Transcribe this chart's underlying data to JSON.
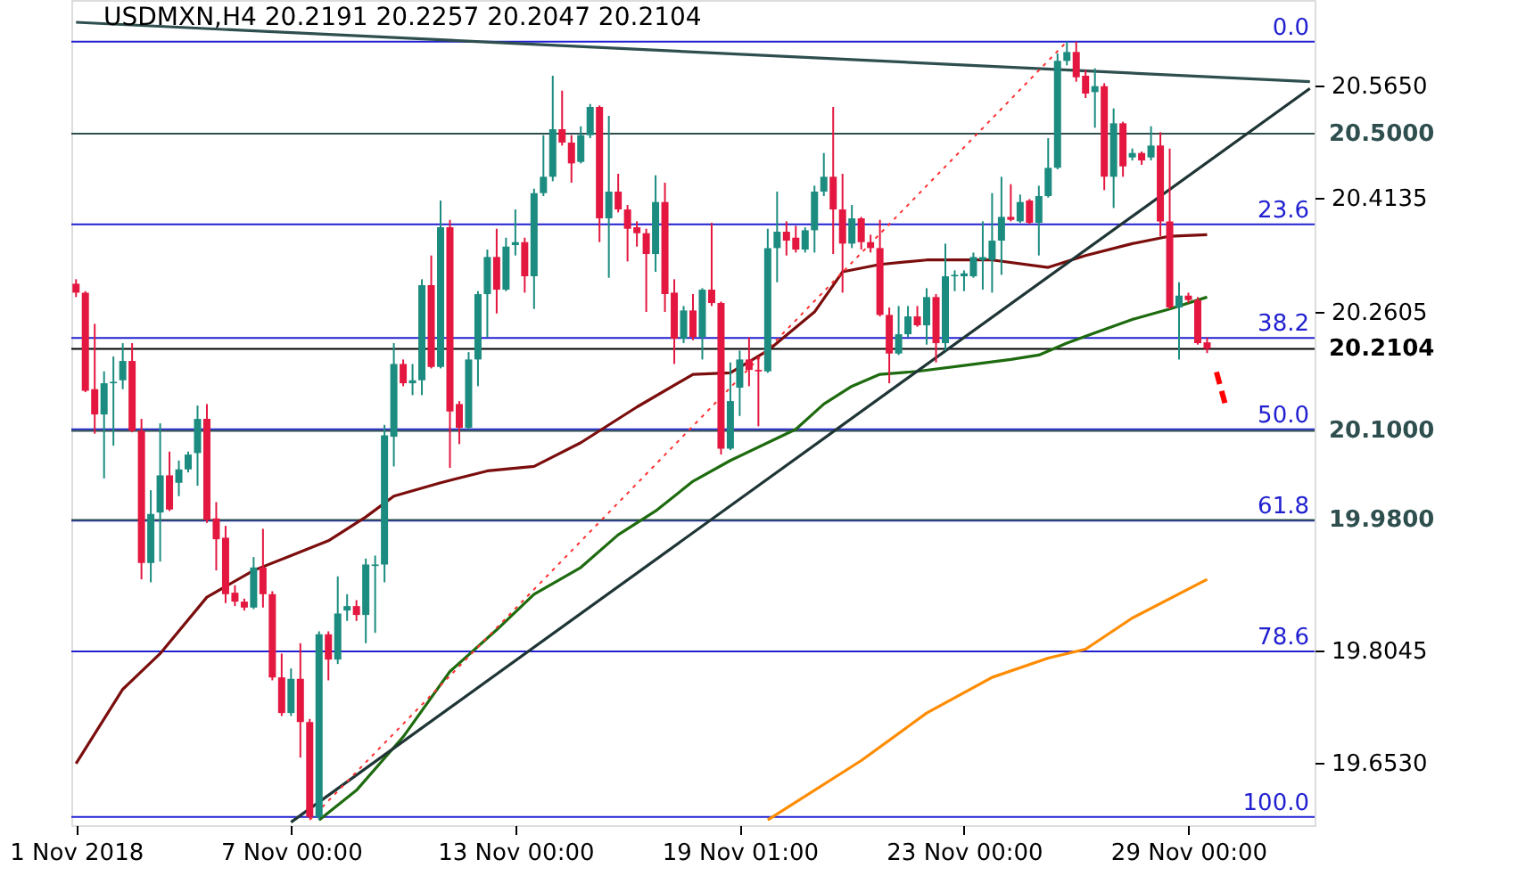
{
  "chart_data": {
    "type": "candlestick",
    "title": "USDMXN,H4  20.2191 20.2257 20.2047 20.2104",
    "categories": [
      "1 Nov 2018",
      null,
      null,
      null,
      null,
      null,
      null,
      null,
      null,
      null,
      null,
      null,
      null,
      null,
      null,
      null,
      null,
      null,
      null,
      null,
      null,
      null,
      null,
      "7 Nov 00:00",
      null,
      null,
      null,
      null,
      null,
      null,
      null,
      null,
      null,
      null,
      null,
      null,
      null,
      null,
      null,
      null,
      null,
      null,
      null,
      null,
      null,
      null,
      null,
      "13 Nov 00:00",
      null,
      null,
      null,
      null,
      null,
      null,
      null,
      null,
      null,
      null,
      null,
      null,
      null,
      null,
      null,
      null,
      null,
      null,
      null,
      null,
      null,
      null,
      null,
      "19 Nov 01:00",
      null,
      null,
      null,
      null,
      null,
      null,
      null,
      null,
      null,
      null,
      null,
      null,
      null,
      null,
      null,
      null,
      null,
      null,
      null,
      null,
      null,
      null,
      null,
      "23 Nov 00:00",
      null,
      null,
      null,
      null,
      null,
      null,
      null,
      null,
      null,
      null,
      null,
      null,
      null,
      null,
      null,
      null,
      null,
      null,
      null,
      null,
      null,
      null,
      null,
      "29 Nov 00:00",
      null,
      null,
      null,
      null,
      null,
      null,
      null,
      null,
      null,
      null,
      null,
      null,
      null
    ],
    "ohlc": [
      [
        20.298,
        20.304,
        20.28,
        20.286
      ],
      [
        20.286,
        20.288,
        20.152,
        20.154
      ],
      [
        20.156,
        20.244,
        20.096,
        20.122
      ],
      [
        20.122,
        20.18,
        20.036,
        20.164
      ],
      [
        20.164,
        20.2,
        20.08,
        20.166
      ],
      [
        20.168,
        20.218,
        20.156,
        20.194
      ],
      [
        20.194,
        20.218,
        20.098,
        20.1
      ],
      [
        20.1,
        20.116,
        19.9,
        19.922
      ],
      [
        19.922,
        20.02,
        19.896,
        19.988
      ],
      [
        19.99,
        20.11,
        19.924,
        20.04
      ],
      [
        20.04,
        20.072,
        19.992,
        19.994
      ],
      [
        20.03,
        20.06,
        20.012,
        20.048
      ],
      [
        20.048,
        20.072,
        20.044,
        20.068
      ],
      [
        20.07,
        20.134,
        20.026,
        20.116
      ],
      [
        20.116,
        20.136,
        19.976,
        19.98
      ],
      [
        19.982,
        20.004,
        19.912,
        19.954
      ],
      [
        19.956,
        19.972,
        19.868,
        19.88
      ],
      [
        19.882,
        19.892,
        19.864,
        19.87
      ],
      [
        19.87,
        19.874,
        19.858,
        19.862
      ],
      [
        19.862,
        19.93,
        19.86,
        19.916
      ],
      [
        19.916,
        19.968,
        19.862,
        19.88
      ],
      [
        19.88,
        19.884,
        19.764,
        19.768
      ],
      [
        19.768,
        19.8,
        19.716,
        19.72
      ],
      [
        19.72,
        19.78,
        19.716,
        19.766
      ],
      [
        19.766,
        19.814,
        19.66,
        19.708
      ],
      [
        19.708,
        19.712,
        19.578,
        19.58
      ],
      [
        19.58,
        19.83,
        19.576,
        19.826
      ],
      [
        19.826,
        19.83,
        19.764,
        19.792
      ],
      [
        19.792,
        19.904,
        19.786,
        19.854
      ],
      [
        19.858,
        19.88,
        19.844,
        19.864
      ],
      [
        19.864,
        19.872,
        19.844,
        19.852
      ],
      [
        19.852,
        19.928,
        19.814,
        19.92
      ],
      [
        19.918,
        19.932,
        19.828,
        19.92
      ],
      [
        19.92,
        20.108,
        19.896,
        20.094
      ],
      [
        20.092,
        20.218,
        20.052,
        20.19
      ],
      [
        20.19,
        20.196,
        20.16,
        20.164
      ],
      [
        20.164,
        20.19,
        20.148,
        20.168
      ],
      [
        20.168,
        20.304,
        20.148,
        20.296
      ],
      [
        20.296,
        20.336,
        20.184,
        20.186
      ],
      [
        20.186,
        20.41,
        20.184,
        20.374
      ],
      [
        20.374,
        20.384,
        20.05,
        20.126
      ],
      [
        20.136,
        20.14,
        20.082,
        20.104
      ],
      [
        20.104,
        20.206,
        20.102,
        20.196
      ],
      [
        20.196,
        20.288,
        20.16,
        20.284
      ],
      [
        20.284,
        20.344,
        20.226,
        20.334
      ],
      [
        20.334,
        20.372,
        20.258,
        20.29
      ],
      [
        20.29,
        20.36,
        20.288,
        20.348
      ],
      [
        20.35,
        20.398,
        20.336,
        20.354
      ],
      [
        20.354,
        20.36,
        20.286,
        20.308
      ],
      [
        20.308,
        20.426,
        20.264,
        20.42
      ],
      [
        20.42,
        20.498,
        20.416,
        20.442
      ],
      [
        20.442,
        20.578,
        20.436,
        20.506
      ],
      [
        20.506,
        20.558,
        20.484,
        20.488
      ],
      [
        20.488,
        20.498,
        20.434,
        20.46
      ],
      [
        20.462,
        20.51,
        20.46,
        20.498
      ],
      [
        20.498,
        20.54,
        20.494,
        20.536
      ],
      [
        20.536,
        20.538,
        20.354,
        20.386
      ],
      [
        20.386,
        20.524,
        20.306,
        20.422
      ],
      [
        20.422,
        20.446,
        20.394,
        20.398
      ],
      [
        20.398,
        20.404,
        20.328,
        20.372
      ],
      [
        20.374,
        20.382,
        20.348,
        20.366
      ],
      [
        20.366,
        20.372,
        20.26,
        20.338
      ],
      [
        20.338,
        20.444,
        20.314,
        20.408
      ],
      [
        20.408,
        20.434,
        20.26,
        20.284
      ],
      [
        20.286,
        20.304,
        20.19,
        20.224
      ],
      [
        20.224,
        20.268,
        20.218,
        20.262
      ],
      [
        20.262,
        20.284,
        20.222,
        20.226
      ],
      [
        20.226,
        20.292,
        20.196,
        20.29
      ],
      [
        20.29,
        20.38,
        20.268,
        20.272
      ],
      [
        20.272,
        20.274,
        20.068,
        20.076
      ],
      [
        20.076,
        20.192,
        20.074,
        20.14
      ],
      [
        20.158,
        20.208,
        20.12,
        20.196
      ],
      [
        20.196,
        20.226,
        20.16,
        20.182
      ],
      [
        20.182,
        20.2,
        20.106,
        20.18
      ],
      [
        20.18,
        20.372,
        20.178,
        20.346
      ],
      [
        20.346,
        20.422,
        20.3,
        20.368
      ],
      [
        20.368,
        20.382,
        20.336,
        20.356
      ],
      [
        20.36,
        20.376,
        20.34,
        20.344
      ],
      [
        20.344,
        20.374,
        20.34,
        20.37
      ],
      [
        20.37,
        20.43,
        20.34,
        20.422
      ],
      [
        20.422,
        20.474,
        20.416,
        20.442
      ],
      [
        20.442,
        20.536,
        20.338,
        20.398
      ],
      [
        20.398,
        20.446,
        20.286,
        20.352
      ],
      [
        20.352,
        20.404,
        20.346,
        20.386
      ],
      [
        20.386,
        20.388,
        20.344,
        20.354
      ],
      [
        20.354,
        20.364,
        20.34,
        20.346
      ],
      [
        20.346,
        20.384,
        20.254,
        20.256
      ],
      [
        20.256,
        20.266,
        20.164,
        20.204
      ],
      [
        20.204,
        20.268,
        20.202,
        20.23
      ],
      [
        20.23,
        20.268,
        20.226,
        20.254
      ],
      [
        20.254,
        20.268,
        20.24,
        20.242
      ],
      [
        20.242,
        20.292,
        20.216,
        20.28
      ],
      [
        20.28,
        20.284,
        20.192,
        20.218
      ],
      [
        20.218,
        20.352,
        20.208,
        20.308
      ],
      [
        20.308,
        20.316,
        20.288,
        20.31
      ],
      [
        20.308,
        20.316,
        20.288,
        20.312
      ],
      [
        20.308,
        20.34,
        20.306,
        20.334
      ],
      [
        20.33,
        20.382,
        20.29,
        20.334
      ],
      [
        20.33,
        20.42,
        20.286,
        20.356
      ],
      [
        20.356,
        20.442,
        20.31,
        20.388
      ],
      [
        20.388,
        20.432,
        20.382,
        20.384
      ],
      [
        20.382,
        20.418,
        20.38,
        20.408
      ],
      [
        20.41,
        20.412,
        20.378,
        20.38
      ],
      [
        20.38,
        20.43,
        20.336,
        20.416
      ],
      [
        20.416,
        20.494,
        20.414,
        20.454
      ],
      [
        20.454,
        20.608,
        20.452,
        20.598
      ],
      [
        20.598,
        20.624,
        20.592,
        20.61
      ],
      [
        20.61,
        20.624,
        20.57,
        20.576
      ],
      [
        20.578,
        20.586,
        20.548,
        20.554
      ],
      [
        20.556,
        20.588,
        20.508,
        20.564
      ],
      [
        20.564,
        20.568,
        20.424,
        20.442
      ],
      [
        20.442,
        20.534,
        20.4,
        20.514
      ],
      [
        20.514,
        20.516,
        20.442,
        20.456
      ],
      [
        20.468,
        20.48,
        20.464,
        20.474
      ],
      [
        20.474,
        20.476,
        20.458,
        20.464
      ],
      [
        20.468,
        20.51,
        20.464,
        20.484
      ],
      [
        20.484,
        20.502,
        20.362,
        20.382
      ],
      [
        20.382,
        20.48,
        20.264,
        20.266
      ],
      [
        20.266,
        20.3,
        20.196,
        20.282
      ],
      [
        20.282,
        20.286,
        20.272,
        20.276
      ],
      [
        20.276,
        20.28,
        20.216,
        20.218
      ],
      [
        20.2191,
        20.2257,
        20.2047,
        20.2104
      ],
      null,
      null,
      null,
      null,
      null,
      null,
      null,
      null,
      null,
      null,
      null
    ],
    "colors": [
      "#e3173f",
      "#e3173f",
      "#e3173f",
      "#1c8c80",
      "#1c8c80",
      "#1c8c80",
      "#e3173f",
      "#e3173f",
      "#1c8c80",
      "#1c8c80",
      "#e3173f",
      "#1c8c80",
      "#1c8c80",
      "#1c8c80",
      "#e3173f",
      "#e3173f",
      "#e3173f",
      "#e3173f",
      "#e3173f",
      "#1c8c80",
      "#e3173f",
      "#e3173f",
      "#e3173f",
      "#1c8c80",
      "#e3173f",
      "#e3173f",
      "#1c8c80",
      "#e3173f",
      "#1c8c80",
      "#1c8c80",
      "#e3173f",
      "#1c8c80",
      "#1c8c80",
      "#1c8c80",
      "#1c8c80",
      "#e3173f",
      "#1c8c80",
      "#1c8c80",
      "#e3173f",
      "#1c8c80",
      "#e3173f",
      "#e3173f",
      "#1c8c80",
      "#1c8c80",
      "#1c8c80",
      "#e3173f",
      "#1c8c80",
      "#1c8c80",
      "#e3173f",
      "#1c8c80",
      "#1c8c80",
      "#1c8c80",
      "#e3173f",
      "#e3173f",
      "#1c8c80",
      "#1c8c80",
      "#e3173f",
      "#1c8c80",
      "#e3173f",
      "#e3173f",
      "#e3173f",
      "#e3173f",
      "#1c8c80",
      "#e3173f",
      "#e3173f",
      "#1c8c80",
      "#e3173f",
      "#1c8c80",
      "#e3173f",
      "#e3173f",
      "#1c8c80",
      "#1c8c80",
      "#e3173f",
      "#e3173f",
      "#1c8c80",
      "#1c8c80",
      "#e3173f",
      "#e3173f",
      "#1c8c80",
      "#1c8c80",
      "#1c8c80",
      "#e3173f",
      "#e3173f",
      "#1c8c80",
      "#e3173f",
      "#e3173f",
      "#e3173f",
      "#e3173f",
      "#1c8c80",
      "#1c8c80",
      "#e3173f",
      "#1c8c80",
      "#e3173f",
      "#1c8c80",
      "#1c8c80",
      "#1c8c80",
      "#1c8c80",
      "#1c8c80",
      "#1c8c80",
      "#1c8c80",
      "#e3173f",
      "#1c8c80",
      "#e3173f",
      "#1c8c80",
      "#1c8c80",
      "#1c8c80",
      "#1c8c80",
      "#e3173f",
      "#e3173f",
      "#1c8c80",
      "#e3173f",
      "#1c8c80",
      "#e3173f",
      "#1c8c80",
      "#e3173f",
      "#1c8c80",
      "#e3173f",
      "#e3173f",
      "#1c8c80",
      "#e3173f",
      "#e3173f",
      "#e3173f",
      null,
      null,
      null,
      null,
      null,
      null,
      null,
      null,
      null,
      null,
      null
    ],
    "series": [
      {
        "type": "line",
        "color": "#7b0d0d",
        "values": [
          19.652,
          null,
          null,
          null,
          null,
          19.752,
          null,
          null,
          null,
          19.8,
          null,
          null,
          null,
          null,
          19.876,
          null,
          null,
          null,
          null,
          19.912,
          null,
          null,
          null,
          19.932,
          null,
          null,
          null,
          19.952,
          null,
          null,
          null,
          19.984,
          null,
          null,
          20.012,
          null,
          null,
          null,
          null,
          20.03,
          null,
          null,
          null,
          null,
          20.046,
          null,
          null,
          null,
          null,
          20.052,
          null,
          null,
          null,
          null,
          20.084,
          null,
          null,
          null,
          null,
          null,
          20.132,
          null,
          null,
          null,
          null,
          null,
          20.176,
          null,
          null,
          null,
          20.178,
          null,
          null,
          null,
          20.208,
          null,
          null,
          null,
          null,
          20.26,
          null,
          null,
          20.314,
          null,
          null,
          null,
          20.324,
          null,
          null,
          null,
          null,
          20.33,
          null,
          null,
          null,
          null,
          null,
          null,
          20.33,
          null,
          null,
          null,
          null,
          null,
          20.32,
          null,
          null,
          null,
          20.336,
          null,
          null,
          null,
          null,
          20.352,
          null,
          null,
          null,
          20.362,
          null,
          null,
          null,
          20.364,
          null,
          null,
          null,
          null,
          null,
          null,
          null,
          null,
          null,
          null,
          null
        ]
      },
      {
        "type": "line",
        "color": "#1e6b0f",
        "values": [
          null,
          null,
          null,
          null,
          null,
          null,
          null,
          null,
          null,
          null,
          null,
          null,
          null,
          null,
          null,
          null,
          null,
          null,
          null,
          null,
          null,
          null,
          null,
          null,
          null,
          null,
          19.576,
          null,
          null,
          null,
          19.616,
          null,
          null,
          null,
          null,
          19.688,
          null,
          null,
          null,
          null,
          19.776,
          null,
          null,
          null,
          null,
          19.832,
          null,
          null,
          null,
          19.88,
          null,
          null,
          null,
          null,
          19.916,
          null,
          null,
          null,
          19.96,
          null,
          null,
          null,
          19.992,
          null,
          null,
          null,
          20.032,
          null,
          null,
          null,
          20.06,
          null,
          null,
          null,
          20.084,
          null,
          null,
          20.102,
          null,
          null,
          20.136,
          null,
          null,
          20.16,
          null,
          null,
          20.176,
          null,
          null,
          null,
          20.18,
          null,
          null,
          null,
          null,
          20.188,
          null,
          null,
          null,
          null,
          20.196,
          null,
          null,
          20.202,
          null,
          null,
          20.218,
          null,
          null,
          20.232,
          null,
          null,
          null,
          20.25,
          null,
          null,
          null,
          20.264,
          null,
          null,
          null,
          20.28,
          null,
          null,
          null,
          null,
          null,
          null,
          null,
          null,
          null,
          null,
          null
        ]
      },
      {
        "type": "line",
        "color": "#ff8c00",
        "values": [
          null,
          null,
          null,
          null,
          null,
          null,
          null,
          null,
          null,
          null,
          null,
          null,
          null,
          null,
          null,
          null,
          null,
          null,
          null,
          null,
          null,
          null,
          null,
          null,
          null,
          null,
          null,
          null,
          null,
          null,
          null,
          null,
          null,
          null,
          null,
          null,
          null,
          null,
          null,
          null,
          null,
          null,
          null,
          null,
          null,
          null,
          null,
          null,
          null,
          null,
          null,
          null,
          null,
          null,
          null,
          null,
          null,
          null,
          null,
          null,
          null,
          null,
          null,
          null,
          null,
          null,
          null,
          null,
          null,
          null,
          null,
          null,
          null,
          null,
          19.576,
          null,
          null,
          null,
          null,
          null,
          null,
          null,
          null,
          null,
          19.656,
          null,
          null,
          null,
          null,
          null,
          null,
          19.72,
          null,
          null,
          null,
          null,
          null,
          null,
          19.768,
          null,
          null,
          null,
          null,
          null,
          19.794,
          null,
          null,
          null,
          19.806,
          null,
          null,
          null,
          null,
          19.848,
          null,
          null,
          null,
          null,
          null,
          null,
          null,
          19.9,
          null,
          null,
          null,
          null,
          null,
          null,
          null,
          null,
          null,
          null,
          null
        ]
      },
      {
        "type": "line",
        "color": "#2f4f4f",
        "values": [
          20.65,
          null,
          null,
          null,
          null,
          null,
          null,
          null,
          null,
          null,
          null,
          null,
          null,
          null,
          null,
          null,
          null,
          null,
          null,
          null,
          null,
          null,
          null,
          null,
          null,
          null,
          null,
          null,
          null,
          null,
          null,
          null,
          null,
          null,
          null,
          null,
          null,
          null,
          null,
          null,
          null,
          null,
          null,
          null,
          null,
          null,
          null,
          null,
          null,
          null,
          null,
          null,
          null,
          null,
          null,
          null,
          null,
          null,
          null,
          null,
          null,
          null,
          null,
          null,
          null,
          null,
          null,
          null,
          null,
          null,
          null,
          null,
          null,
          null,
          null,
          null,
          null,
          null,
          null,
          null,
          null,
          null,
          null,
          null,
          null,
          null,
          null,
          null,
          null,
          null,
          null,
          null,
          null,
          null,
          null,
          null,
          null,
          null,
          null,
          null,
          null,
          null,
          null,
          null,
          null,
          null,
          null,
          null,
          null,
          null,
          null,
          null,
          null,
          null,
          null,
          null,
          null,
          null,
          null,
          null,
          null,
          null,
          null,
          null,
          null,
          null,
          null,
          null,
          null,
          null,
          null,
          null,
          20.57
        ]
      },
      {
        "type": "line",
        "color": "#1f3535",
        "values": [
          null,
          null,
          null,
          null,
          null,
          null,
          null,
          null,
          null,
          null,
          null,
          null,
          null,
          null,
          null,
          null,
          null,
          null,
          null,
          null,
          null,
          null,
          null,
          19.573,
          null,
          null,
          null,
          null,
          null,
          null,
          null,
          null,
          null,
          null,
          null,
          null,
          null,
          null,
          null,
          null,
          null,
          null,
          null,
          null,
          null,
          null,
          null,
          null,
          null,
          null,
          null,
          null,
          null,
          null,
          null,
          null,
          null,
          null,
          null,
          null,
          null,
          null,
          null,
          null,
          null,
          null,
          null,
          null,
          null,
          null,
          null,
          null,
          null,
          null,
          null,
          null,
          null,
          null,
          null,
          null,
          null,
          null,
          null,
          null,
          null,
          null,
          null,
          null,
          null,
          null,
          null,
          null,
          null,
          null,
          null,
          null,
          null,
          null,
          null,
          null,
          null,
          null,
          null,
          null,
          null,
          null,
          null,
          null,
          null,
          null,
          null,
          null,
          null,
          null,
          null,
          null,
          null,
          null,
          null,
          null,
          null,
          null,
          null,
          null,
          null,
          null,
          null,
          null,
          null,
          null,
          null,
          null,
          20.561
        ]
      },
      {
        "type": "line",
        "color": "#ff3030",
        "line_style": "dotted",
        "values": [
          null,
          null,
          null,
          null,
          null,
          null,
          null,
          null,
          null,
          null,
          null,
          null,
          null,
          null,
          null,
          null,
          null,
          null,
          null,
          null,
          null,
          null,
          null,
          null,
          null,
          19.576,
          null,
          null,
          null,
          null,
          null,
          null,
          null,
          null,
          null,
          null,
          null,
          null,
          null,
          null,
          null,
          null,
          null,
          null,
          null,
          null,
          null,
          null,
          null,
          null,
          null,
          null,
          null,
          null,
          null,
          null,
          null,
          null,
          null,
          null,
          null,
          null,
          null,
          null,
          null,
          null,
          null,
          null,
          null,
          null,
          null,
          null,
          null,
          null,
          null,
          null,
          null,
          null,
          null,
          null,
          null,
          null,
          null,
          null,
          null,
          null,
          null,
          null,
          null,
          null,
          null,
          null,
          null,
          null,
          null,
          null,
          null,
          null,
          null,
          null,
          null,
          null,
          null,
          null,
          null,
          null,
          20.624,
          null,
          null,
          null,
          null,
          null,
          null,
          null,
          null,
          null,
          null,
          null,
          null,
          null,
          null,
          null,
          null,
          null,
          null,
          null,
          null,
          null,
          null,
          null,
          null,
          null,
          null
        ]
      },
      {
        "type": "line",
        "color": "#ff0000",
        "line_style": "dashed",
        "values": [
          null,
          null,
          null,
          null,
          null,
          null,
          null,
          null,
          null,
          null,
          null,
          null,
          null,
          null,
          null,
          null,
          null,
          null,
          null,
          null,
          null,
          null,
          null,
          null,
          null,
          null,
          null,
          null,
          null,
          null,
          null,
          null,
          null,
          null,
          null,
          null,
          null,
          null,
          null,
          null,
          null,
          null,
          null,
          null,
          null,
          null,
          null,
          null,
          null,
          null,
          null,
          null,
          null,
          null,
          null,
          null,
          null,
          null,
          null,
          null,
          null,
          null,
          null,
          null,
          null,
          null,
          null,
          null,
          null,
          null,
          null,
          null,
          null,
          null,
          null,
          null,
          null,
          null,
          null,
          null,
          null,
          null,
          null,
          null,
          null,
          null,
          null,
          null,
          null,
          null,
          null,
          null,
          null,
          null,
          null,
          null,
          null,
          null,
          null,
          null,
          null,
          null,
          null,
          null,
          null,
          null,
          null,
          null,
          null,
          null,
          null,
          null,
          null,
          null,
          null,
          null,
          null,
          null,
          null,
          null,
          null,
          null,
          20.179,
          20.133,
          null,
          null,
          null,
          null,
          null,
          null,
          null,
          null,
          null
        ]
      }
    ],
    "annotations": [
      {
        "text": "0.0",
        "y": 20.624
      },
      {
        "text": "23.6",
        "y": 20.378
      },
      {
        "text": "38.2",
        "y": 20.225
      },
      {
        "text": "50.0",
        "y": 20.102
      },
      {
        "text": "61.8",
        "y": 19.979
      },
      {
        "text": "78.6",
        "y": 19.803
      },
      {
        "text": "100.0",
        "y": 19.58
      }
    ],
    "ref_lines": [
      {
        "axis": "y",
        "value": 20.624,
        "color": "#2020d0"
      },
      {
        "axis": "y",
        "value": 20.378,
        "color": "#2020d0"
      },
      {
        "axis": "y",
        "value": 20.225,
        "color": "#2020d0"
      },
      {
        "axis": "y",
        "value": 20.102,
        "color": "#2020d0"
      },
      {
        "axis": "y",
        "value": 19.979,
        "color": "#2020d0"
      },
      {
        "axis": "y",
        "value": 19.803,
        "color": "#2020d0"
      },
      {
        "axis": "y",
        "value": 19.58,
        "color": "#2020d0"
      },
      {
        "axis": "y",
        "value": 20.5,
        "label": "20.5000",
        "color": "#2f4f4f"
      },
      {
        "axis": "y",
        "value": 20.1,
        "label": "20.1000",
        "color": "#2f4f4f"
      },
      {
        "axis": "y",
        "value": 19.98,
        "label": "19.9800",
        "color": "#2f4f4f"
      },
      {
        "axis": "y",
        "value": 20.2104,
        "label": "20.2104",
        "color": "#000000"
      }
    ],
    "ylim": [
      19.569,
      20.68
    ],
    "yticks": [
      {
        "value": 20.565,
        "label": "20.5650"
      },
      {
        "value": 20.4135,
        "label": "20.4135"
      },
      {
        "value": 20.2605,
        "label": "20.2605"
      },
      {
        "value": 19.8045,
        "label": "19.8045"
      },
      {
        "value": 19.653,
        "label": "19.6530"
      }
    ]
  }
}
